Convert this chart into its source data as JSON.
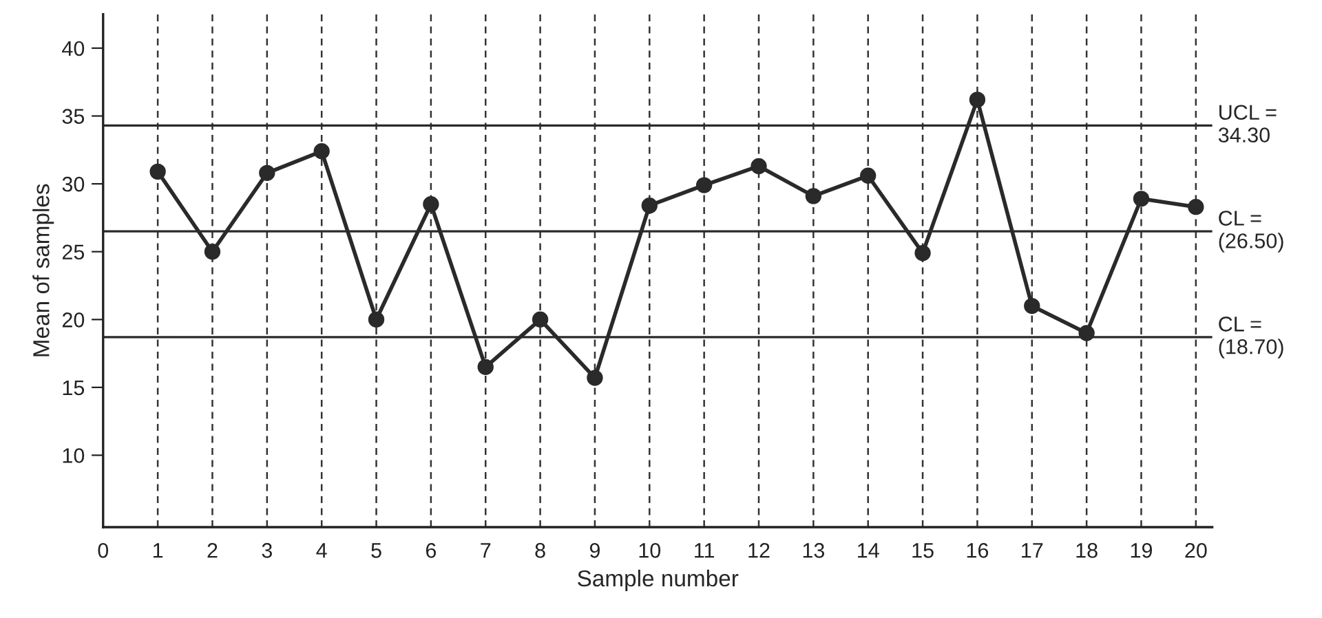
{
  "chart_data": {
    "type": "line",
    "xlabel": "Sample number",
    "ylabel": "Mean of samples",
    "x": [
      1,
      2,
      3,
      4,
      5,
      6,
      7,
      8,
      9,
      10,
      11,
      12,
      13,
      14,
      15,
      16,
      17,
      18,
      19,
      20
    ],
    "series": [
      {
        "color": "#2a2a2a",
        "values": [
          30.9,
          25,
          30.8,
          32.4,
          20,
          28.5,
          16.5,
          20,
          15.7,
          28.4,
          29.9,
          31.3,
          29.1,
          30.6,
          24.9,
          36.2,
          21,
          19,
          28.9,
          28.3
        ]
      }
    ],
    "marker": "circle",
    "line_style": "solid",
    "xlim": [
      0,
      20.3
    ],
    "ylim": [
      4.7,
      42.5
    ],
    "xticks": [
      0,
      1,
      2,
      3,
      4,
      5,
      6,
      7,
      8,
      9,
      10,
      11,
      12,
      13,
      14,
      15,
      16,
      17,
      18,
      19,
      20
    ],
    "yticks": [
      10,
      15,
      20,
      25,
      30,
      35,
      40
    ],
    "ref_lines": [
      {
        "axis": "y",
        "value": 34.3,
        "label": "UCL =\n34.30",
        "color": "#2a2a2a"
      },
      {
        "axis": "y",
        "value": 26.5,
        "label": "CL =\n(26.50)",
        "color": "#2a2a2a"
      },
      {
        "axis": "y",
        "value": 18.7,
        "label": "CL =\n(18.70)",
        "color": "#2a2a2a"
      }
    ],
    "grid": "x",
    "legend": false
  }
}
